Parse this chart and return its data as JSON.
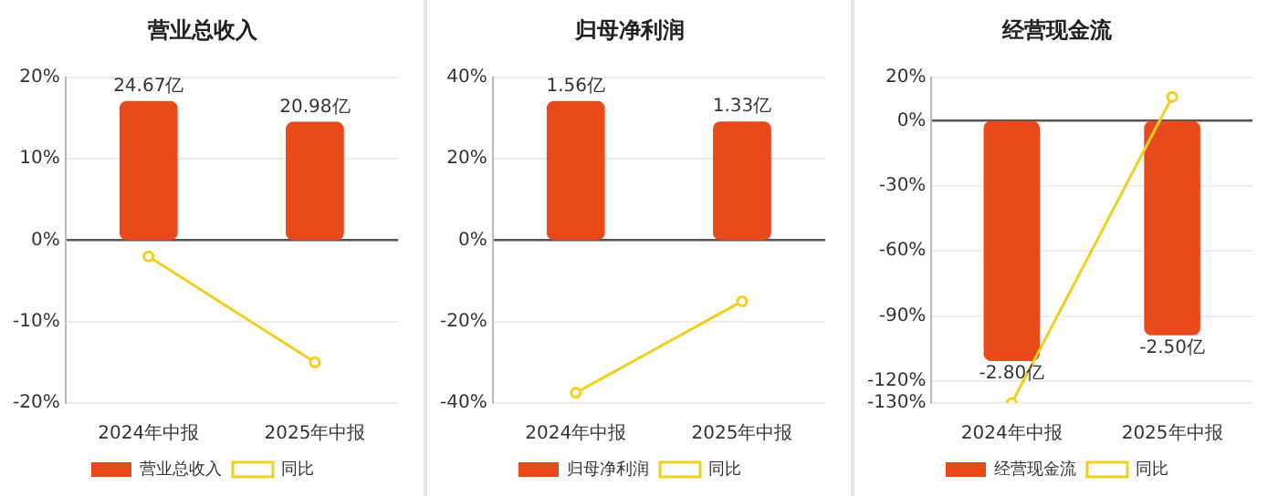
{
  "chart_data": [
    {
      "type": "bar",
      "title": "营业总收入",
      "categories": [
        "2024年中报",
        "2025年中报"
      ],
      "series": [
        {
          "name": "营业总收入",
          "color": "#e84a1c",
          "axis": "y2",
          "values": [
            24.67,
            20.98
          ],
          "value_labels": [
            "24.67亿",
            "20.98亿"
          ]
        },
        {
          "name": "同比",
          "type": "line",
          "color": "#f2cf1e",
          "values": [
            -2,
            -15
          ]
        }
      ],
      "ylim": [
        -20,
        20
      ],
      "yticks": [
        {
          "value": -20,
          "label": "-20%"
        },
        {
          "value": -10,
          "label": "-10%"
        },
        {
          "value": 0,
          "label": "0%"
        },
        {
          "value": 10,
          "label": "10%"
        },
        {
          "value": 20,
          "label": "20%"
        }
      ],
      "y2lim": [
        -28.86,
        28.86
      ],
      "grid": "y",
      "legend": "bottom",
      "marker": "circle"
    },
    {
      "type": "bar",
      "title": "归母净利润",
      "categories": [
        "2024年中报",
        "2025年中报"
      ],
      "series": [
        {
          "name": "归母净利润",
          "color": "#e84a1c",
          "axis": "y2",
          "values": [
            1.56,
            1.33
          ],
          "value_labels": [
            "1.56亿",
            "1.33亿"
          ]
        },
        {
          "name": "同比",
          "type": "line",
          "color": "#f2cf1e",
          "values": [
            -37.5,
            -15
          ]
        }
      ],
      "ylim": [
        -40,
        40
      ],
      "yticks": [
        {
          "value": -40,
          "label": "-40%"
        },
        {
          "value": -20,
          "label": "-20%"
        },
        {
          "value": 0,
          "label": "0%"
        },
        {
          "value": 20,
          "label": "20%"
        },
        {
          "value": 40,
          "label": "40%"
        }
      ],
      "y2lim": [
        -1.825,
        1.825
      ],
      "grid": "y",
      "legend": "bottom",
      "marker": "circle"
    },
    {
      "type": "bar",
      "title": "经营现金流",
      "categories": [
        "2024年中报",
        "2025年中报"
      ],
      "series": [
        {
          "name": "经营现金流",
          "color": "#e84a1c",
          "axis": "y2",
          "values": [
            -2.8,
            -2.5
          ],
          "value_labels": [
            "-2.80亿",
            "-2.50亿"
          ]
        },
        {
          "name": "同比",
          "type": "line",
          "color": "#f2cf1e",
          "values": [
            -130,
            11
          ]
        }
      ],
      "ylim": [
        -130,
        20
      ],
      "yticks": [
        {
          "value": -130,
          "label": "-130%"
        },
        {
          "value": -120,
          "label": "-120%"
        },
        {
          "value": -90,
          "label": "-90%"
        },
        {
          "value": -60,
          "label": "-60%"
        },
        {
          "value": -30,
          "label": "-30%"
        },
        {
          "value": 0,
          "label": "0%"
        },
        {
          "value": 20,
          "label": "20%"
        }
      ],
      "y2lim": [
        -3.29,
        0.51
      ],
      "grid": "y",
      "legend": "bottom",
      "marker": "circle"
    }
  ]
}
